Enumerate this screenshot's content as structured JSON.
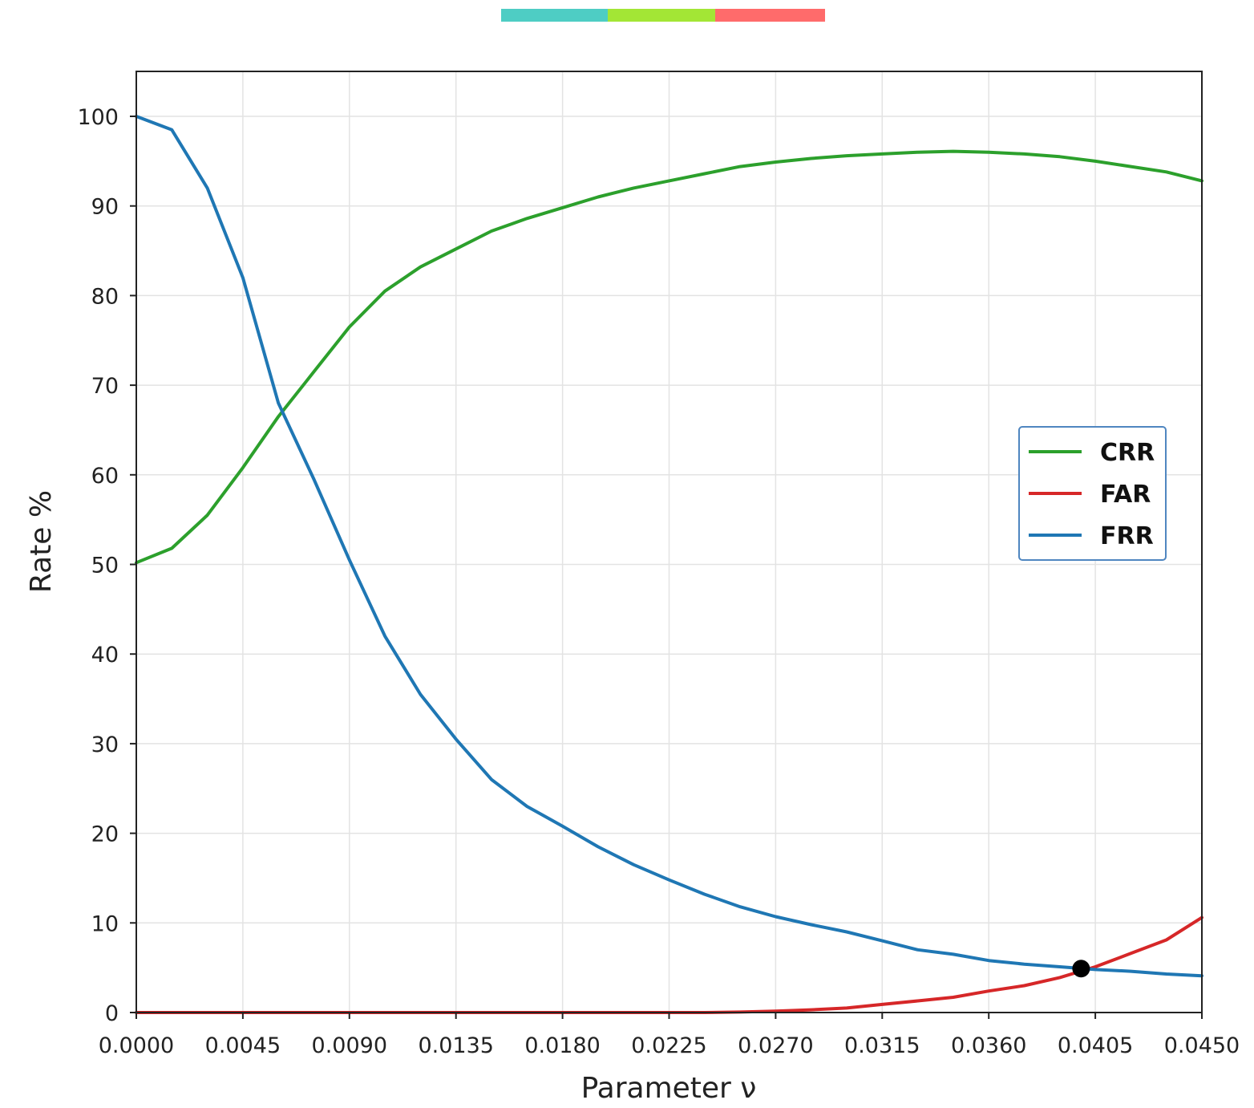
{
  "top_bar": {
    "segments": [
      {
        "color": "#4ecdc4"
      },
      {
        "color": "#a3e635"
      },
      {
        "color": "#ff6b6b"
      }
    ]
  },
  "chart_data": {
    "type": "line",
    "title": "",
    "xlabel": "Parameter ν",
    "ylabel": "Rate %",
    "xlim": [
      0.0,
      0.045
    ],
    "ylim": [
      0,
      105
    ],
    "grid": true,
    "x_ticks": [
      "0.0000",
      "0.0045",
      "0.0090",
      "0.0135",
      "0.0180",
      "0.0225",
      "0.0270",
      "0.0315",
      "0.0360",
      "0.0405",
      "0.0450"
    ],
    "y_ticks": [
      "0",
      "10",
      "20",
      "30",
      "40",
      "50",
      "60",
      "70",
      "80",
      "90",
      "100"
    ],
    "legend_position": "center-right",
    "x": [
      0.0,
      0.0015,
      0.003,
      0.0045,
      0.006,
      0.0075,
      0.009,
      0.0105,
      0.012,
      0.0135,
      0.015,
      0.0165,
      0.018,
      0.0195,
      0.021,
      0.0225,
      0.024,
      0.0255,
      0.027,
      0.0285,
      0.03,
      0.0315,
      0.033,
      0.0345,
      0.036,
      0.0375,
      0.039,
      0.0405,
      0.042,
      0.0435,
      0.045
    ],
    "series": [
      {
        "name": "CRR",
        "color": "#2ca02c",
        "values": [
          50.2,
          51.8,
          55.5,
          60.8,
          66.5,
          71.5,
          76.5,
          80.5,
          83.2,
          85.2,
          87.2,
          88.6,
          89.8,
          91.0,
          92.0,
          92.8,
          93.6,
          94.4,
          94.9,
          95.3,
          95.6,
          95.8,
          96.0,
          96.1,
          96.0,
          95.8,
          95.5,
          95.0,
          94.4,
          93.8,
          92.8
        ]
      },
      {
        "name": "FAR",
        "color": "#d62728",
        "values": [
          0.0,
          0.0,
          0.0,
          0.0,
          0.0,
          0.0,
          0.0,
          0.0,
          0.0,
          0.0,
          0.0,
          0.0,
          0.0,
          0.0,
          0.0,
          0.0,
          0.0,
          0.05,
          0.15,
          0.3,
          0.5,
          0.9,
          1.3,
          1.7,
          2.4,
          3.0,
          3.9,
          5.1,
          6.6,
          8.1,
          10.6
        ]
      },
      {
        "name": "FRR",
        "color": "#1f77b4",
        "values": [
          100.0,
          98.5,
          92.0,
          82.0,
          68.0,
          59.5,
          50.5,
          42.0,
          35.5,
          30.5,
          26.0,
          23.0,
          20.8,
          18.5,
          16.5,
          14.8,
          13.2,
          11.8,
          10.7,
          9.8,
          9.0,
          8.0,
          7.0,
          6.5,
          5.8,
          5.4,
          5.1,
          4.8,
          4.6,
          4.3,
          4.1
        ]
      }
    ],
    "annotations": [
      {
        "type": "point",
        "x": 0.0399,
        "y": 4.9,
        "color": "#000000"
      }
    ]
  }
}
